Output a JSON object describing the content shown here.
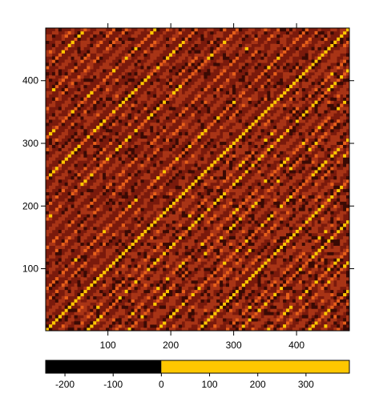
{
  "chart_data": {
    "type": "heatmap",
    "title": "",
    "xlabel": "",
    "ylabel": "",
    "xlim": [
      1,
      484
    ],
    "ylim": [
      1,
      484
    ],
    "x_ticks": [
      100,
      200,
      300,
      400
    ],
    "y_ticks": [
      100,
      200,
      300,
      400
    ],
    "matrix_size": 484,
    "diagonal_band_period": 22,
    "colorbar": {
      "ticks": [
        -200,
        -100,
        0,
        100,
        200,
        300
      ],
      "range": [
        -240,
        390
      ],
      "negative_color": "#000000",
      "positive_color": "#ffc700"
    },
    "colors": {
      "background": "#7a1a0c",
      "mid": "#a83416",
      "bright": "#e8601a",
      "peak": "#ffc700",
      "dark": "#3a0a04"
    }
  }
}
